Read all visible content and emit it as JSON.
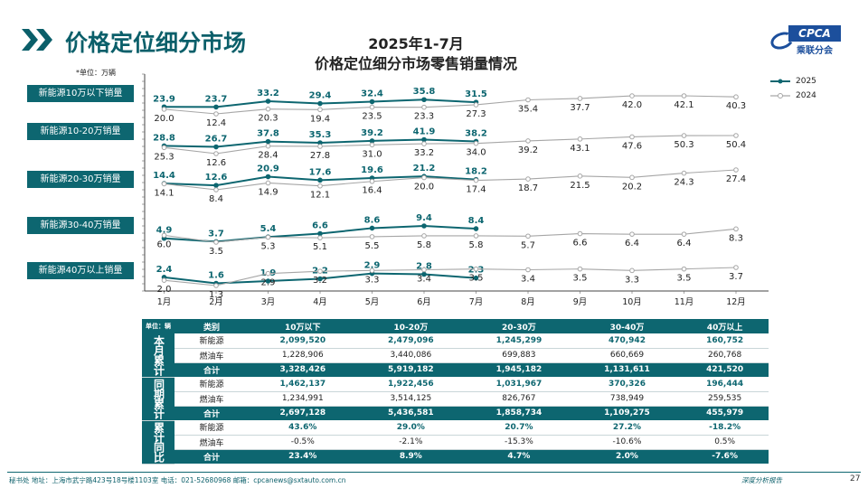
{
  "header": {
    "page_title": "价格定位细分市场",
    "chart_title_line1": "2025年1-7月",
    "chart_title_line2": "价格定位细分市场零售销量情况",
    "logo_text": "CPCA",
    "logo_sub": "乘联分会"
  },
  "colors": {
    "series_2025": "#0d6670",
    "series_2024": "#a6a6a6",
    "accent": "#0d6670"
  },
  "unit_note": "*单位：万辆",
  "segment_labels": [
    "新能源10万以下销量",
    "新能源10-20万销量",
    "新能源20-30万销量",
    "新能源30-40万销量",
    "新能源40万以上销量"
  ],
  "chart_data": {
    "type": "line",
    "x": [
      "1月",
      "2月",
      "3月",
      "4月",
      "5月",
      "6月",
      "7月",
      "8月",
      "9月",
      "10月",
      "11月",
      "12月"
    ],
    "legend": {
      "position": "top-right",
      "entries": [
        "2025",
        "2024"
      ]
    },
    "panels": [
      {
        "label": "新能源10万以下销量",
        "series": [
          {
            "name": "2025",
            "values": [
              23.9,
              23.7,
              33.2,
              29.4,
              32.4,
              35.8,
              31.5
            ]
          },
          {
            "name": "2024",
            "values": [
              20.0,
              12.4,
              20.3,
              19.4,
              23.5,
              23.3,
              27.3,
              35.4,
              37.7,
              42.0,
              42.1,
              40.3
            ]
          }
        ]
      },
      {
        "label": "新能源10-20万销量",
        "series": [
          {
            "name": "2025",
            "values": [
              28.8,
              26.7,
              37.8,
              35.3,
              39.2,
              41.9,
              38.2
            ]
          },
          {
            "name": "2024",
            "values": [
              25.3,
              12.6,
              28.4,
              27.8,
              31.0,
              33.2,
              34.0,
              39.2,
              43.1,
              47.6,
              50.3,
              50.4
            ]
          }
        ]
      },
      {
        "label": "新能源20-30万销量",
        "series": [
          {
            "name": "2025",
            "values": [
              14.4,
              12.6,
              20.9,
              17.6,
              19.6,
              21.2,
              18.2
            ]
          },
          {
            "name": "2024",
            "values": [
              14.1,
              8.4,
              14.9,
              12.1,
              16.4,
              20.0,
              17.4,
              18.7,
              21.5,
              20.2,
              24.3,
              27.4
            ]
          }
        ]
      },
      {
        "label": "新能源30-40万销量",
        "series": [
          {
            "name": "2025",
            "values": [
              4.9,
              3.7,
              5.4,
              6.6,
              8.6,
              9.4,
              8.4
            ]
          },
          {
            "name": "2024",
            "values": [
              6.0,
              3.5,
              5.3,
              5.1,
              5.5,
              5.8,
              5.8,
              5.7,
              6.6,
              6.4,
              6.4,
              8.3
            ]
          }
        ]
      },
      {
        "label": "新能源40万以上销量",
        "series": [
          {
            "name": "2025",
            "values": [
              2.4,
              1.6,
              1.9,
              2.2,
              2.9,
              2.8,
              2.3
            ]
          },
          {
            "name": "2024",
            "values": [
              2.0,
              1.3,
              2.9,
              3.2,
              3.3,
              3.4,
              3.5,
              3.4,
              3.5,
              3.3,
              3.5,
              3.7
            ]
          }
        ]
      }
    ]
  },
  "table": {
    "unit": "单位：辆",
    "headers": [
      "类别",
      "10万以下",
      "10-20万",
      "20-30万",
      "30-40万",
      "40万以上"
    ],
    "groups": [
      {
        "label": "本月累计",
        "rows": [
          {
            "type": "新能源",
            "values": [
              "2,099,520",
              "2,479,096",
              "1,245,299",
              "470,942",
              "160,752"
            ]
          },
          {
            "type": "燃油车",
            "values": [
              "1,228,906",
              "3,440,086",
              "699,883",
              "660,669",
              "260,768"
            ]
          },
          {
            "type": "合计",
            "values": [
              "3,328,426",
              "5,919,182",
              "1,945,182",
              "1,131,611",
              "421,520"
            ]
          }
        ]
      },
      {
        "label": "同期累计",
        "rows": [
          {
            "type": "新能源",
            "values": [
              "1,462,137",
              "1,922,456",
              "1,031,967",
              "370,326",
              "196,444"
            ]
          },
          {
            "type": "燃油车",
            "values": [
              "1,234,991",
              "3,514,125",
              "826,767",
              "738,949",
              "259,535"
            ]
          },
          {
            "type": "合计",
            "values": [
              "2,697,128",
              "5,436,581",
              "1,858,734",
              "1,109,275",
              "455,979"
            ]
          }
        ]
      },
      {
        "label": "累计同比",
        "rows": [
          {
            "type": "新能源",
            "values": [
              "43.6%",
              "29.0%",
              "20.7%",
              "27.2%",
              "-18.2%"
            ]
          },
          {
            "type": "燃油车",
            "values": [
              "-0.5%",
              "-2.1%",
              "-15.3%",
              "-10.6%",
              "0.5%"
            ]
          },
          {
            "type": "合计",
            "values": [
              "23.4%",
              "8.9%",
              "4.7%",
              "2.0%",
              "-7.6%"
            ]
          }
        ]
      }
    ]
  },
  "footer": {
    "address": "秘书处  地址：上海市武宁路423号18号楼1103室  电话：021-52680968  邮箱：cpcanews@sxtauto.com.cn",
    "tag": "深度分析报告",
    "page_number": "27"
  }
}
